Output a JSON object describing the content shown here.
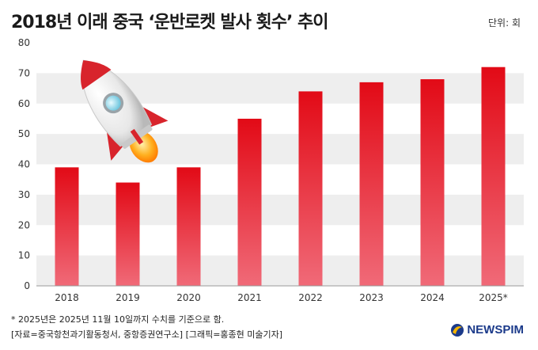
{
  "header": {
    "title": "2018년 이래 중국 ‘운반로켓 발사 횟수’ 추이",
    "unit": "단위: 회"
  },
  "footer": {
    "note": "* 2025년은 2025년 11월 10일까지 수치를 기준으로 함.",
    "source": "[자료=중국항천과기활동청서, 중항증권연구소] [그래픽=홍종현 미술기자]",
    "logo": "NEWSPIM"
  },
  "colors": {
    "bar_top": "#e20a16",
    "bar_bottom": "#f06a78",
    "band": "#eeeeee",
    "logo": "#1b3a8a"
  },
  "chart_data": {
    "type": "bar",
    "categories": [
      "2018",
      "2019",
      "2020",
      "2021",
      "2022",
      "2023",
      "2024",
      "2025*"
    ],
    "values": [
      39,
      34,
      39,
      55,
      64,
      67,
      68,
      72
    ],
    "ylim": [
      0,
      80
    ],
    "yticks": [
      0,
      10,
      20,
      30,
      40,
      50,
      60,
      70,
      80
    ],
    "grid": "alternating horizontal bands"
  }
}
